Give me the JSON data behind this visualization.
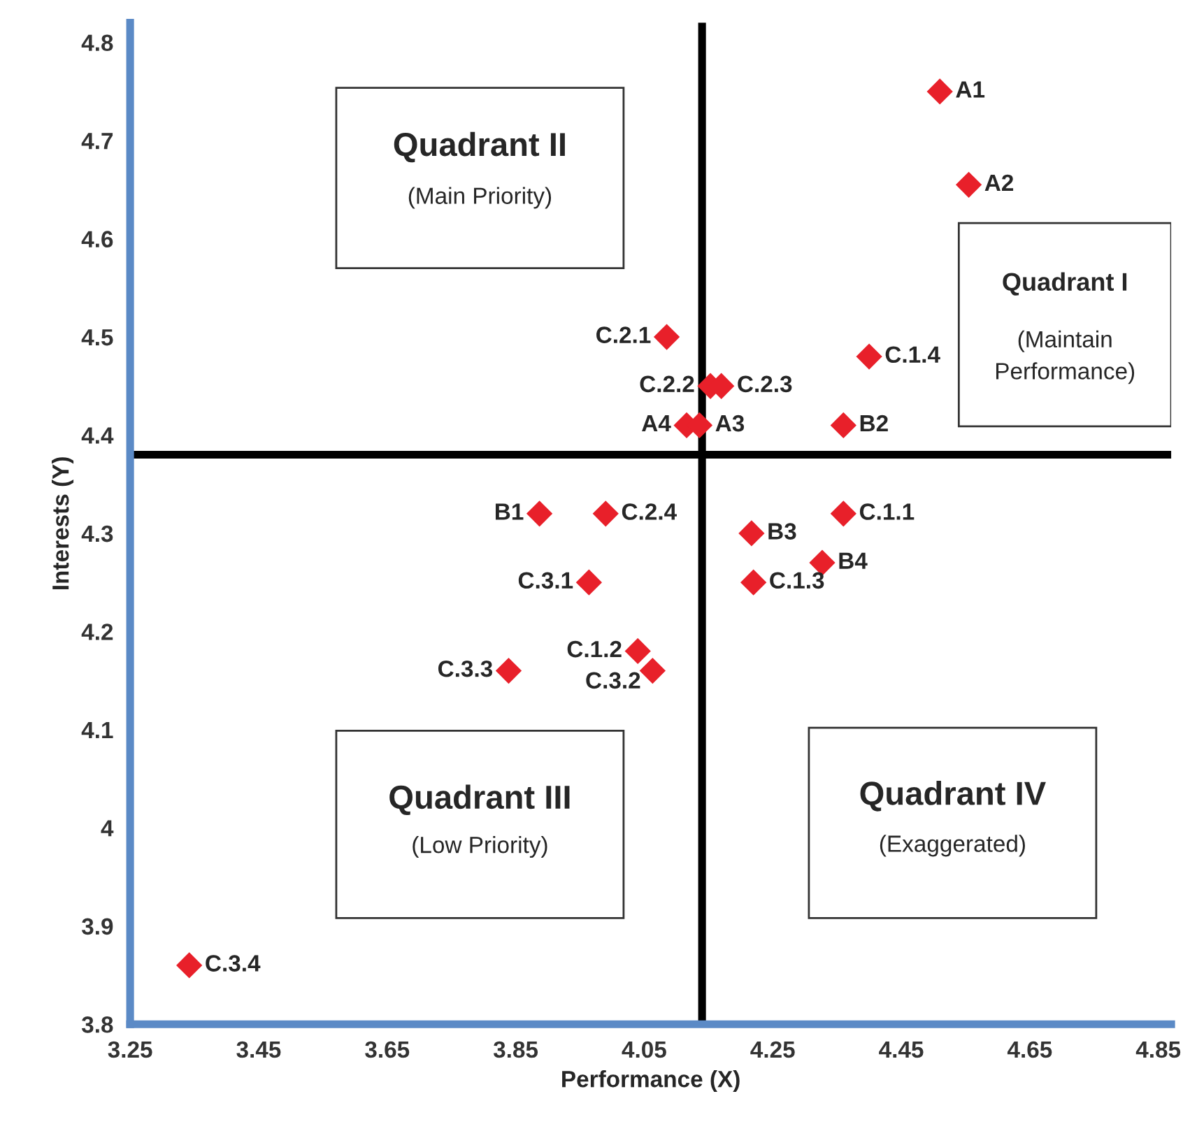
{
  "chart_data": {
    "type": "scatter",
    "xlabel": "Performance (X)",
    "ylabel": "Interests (Y)",
    "x": [
      4.51,
      4.555,
      4.4,
      4.085,
      4.153,
      4.17,
      4.116,
      4.136,
      4.36,
      3.887,
      3.99,
      4.217,
      4.36,
      4.327,
      4.22,
      3.964,
      4.04,
      4.063,
      3.839,
      3.342
    ],
    "values": [
      4.75,
      4.655,
      4.48,
      4.5,
      4.45,
      4.45,
      4.41,
      4.41,
      4.41,
      4.32,
      4.32,
      4.3,
      4.32,
      4.27,
      4.25,
      4.25,
      4.18,
      4.16,
      4.16,
      3.86
    ],
    "color": "#e8202a",
    "marker": "diamond",
    "xlim": [
      3.25,
      4.87
    ],
    "ylim": [
      3.8,
      4.82
    ],
    "xticks": [
      3.25,
      3.45,
      3.65,
      3.85,
      4.05,
      4.25,
      4.45,
      4.65,
      4.85
    ],
    "yticks": [
      3.8,
      3.9,
      {
        "value": 4.0,
        "label": "4"
      },
      4.1,
      4.2,
      4.3,
      4.4,
      4.5,
      4.6,
      4.7,
      4.8
    ],
    "grid": false,
    "ref_lines": [
      {
        "axis": "x",
        "value": 4.14
      },
      {
        "axis": "y",
        "value": 4.38
      }
    ],
    "annotations": [
      {
        "text": "A1",
        "x": 4.51,
        "y": 4.75
      },
      {
        "text": "A2",
        "x": 4.555,
        "y": 4.655
      },
      {
        "text": "C.1.4",
        "x": 4.4,
        "y": 4.48
      },
      {
        "text": "C.2.1",
        "x": 4.085,
        "y": 4.5
      },
      {
        "text": "C.2.2",
        "x": 4.153,
        "y": 4.45
      },
      {
        "text": "C.2.3",
        "x": 4.17,
        "y": 4.45
      },
      {
        "text": "A4",
        "x": 4.116,
        "y": 4.41
      },
      {
        "text": "A3",
        "x": 4.136,
        "y": 4.41
      },
      {
        "text": "B2",
        "x": 4.36,
        "y": 4.41
      },
      {
        "text": "B1",
        "x": 3.887,
        "y": 4.32
      },
      {
        "text": "C.2.4",
        "x": 3.99,
        "y": 4.32
      },
      {
        "text": "B3",
        "x": 4.217,
        "y": 4.3
      },
      {
        "text": "C.1.1",
        "x": 4.36,
        "y": 4.32
      },
      {
        "text": "B4",
        "x": 4.327,
        "y": 4.27
      },
      {
        "text": "C.1.3",
        "x": 4.22,
        "y": 4.25
      },
      {
        "text": "C.3.1",
        "x": 3.964,
        "y": 4.25
      },
      {
        "text": "C.1.2",
        "x": 4.04,
        "y": 4.18
      },
      {
        "text": "C.3.2",
        "x": 4.063,
        "y": 4.16
      },
      {
        "text": "C.3.3",
        "x": 3.839,
        "y": 4.16
      },
      {
        "text": "C.3.4",
        "x": 3.342,
        "y": 3.86
      },
      "Quadrant I",
      "(Maintain\nPerformance)",
      "Quadrant II",
      "(Main Priority)",
      "Quadrant III",
      "(Low Priority)",
      "Quadrant IV",
      "(Exaggerated)"
    ]
  }
}
